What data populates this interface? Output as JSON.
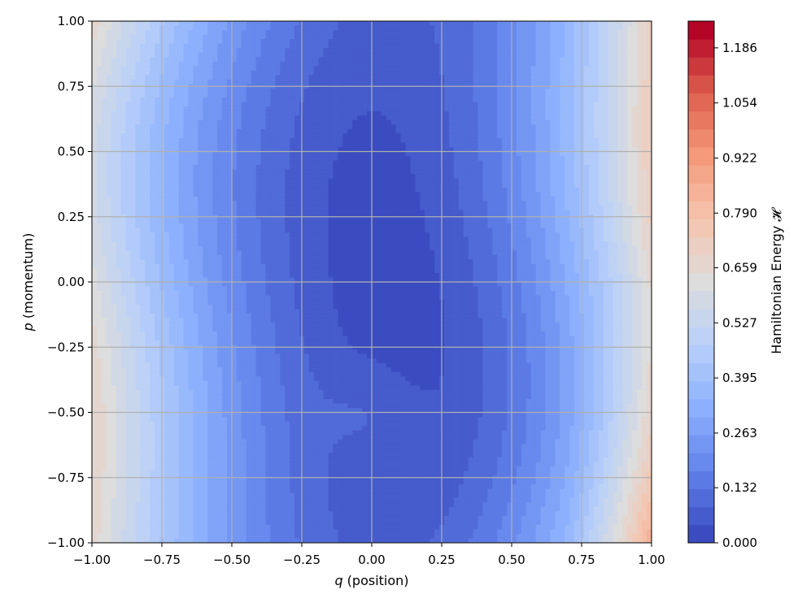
{
  "chart_data": {
    "type": "heatmap",
    "subtype": "filled-contour",
    "xlabel_symbol": "q",
    "xlabel_text": " (position)",
    "ylabel_symbol": "p",
    "ylabel_text": " (momentum)",
    "xlim": [
      -1.0,
      1.0
    ],
    "ylim": [
      -1.0,
      1.0
    ],
    "x_ticks": [
      -1.0,
      -0.75,
      -0.5,
      -0.25,
      0.0,
      0.25,
      0.5,
      0.75,
      1.0
    ],
    "x_tick_labels": [
      "−1.00",
      "−0.75",
      "−0.50",
      "−0.25",
      "0.00",
      "0.25",
      "0.50",
      "0.75",
      "1.00"
    ],
    "y_ticks": [
      -1.0,
      -0.75,
      -0.5,
      -0.25,
      0.0,
      0.25,
      0.5,
      0.75,
      1.0
    ],
    "y_tick_labels": [
      "−1.00",
      "−0.75",
      "−0.50",
      "−0.25",
      "0.00",
      "0.25",
      "0.50",
      "0.75",
      "1.00"
    ],
    "grid": true,
    "colormap": "coolwarm",
    "colorbar": {
      "label": "Hamiltonian Energy 𝓗",
      "min": 0.0,
      "max": 1.25,
      "levels": 29,
      "ticks": [
        0.0,
        0.132,
        0.263,
        0.395,
        0.527,
        0.659,
        0.79,
        0.922,
        1.054,
        1.186
      ],
      "tick_labels": [
        "0.000",
        "0.132",
        "0.263",
        "0.395",
        "0.527",
        "0.659",
        "0.790",
        "0.922",
        "1.054",
        "1.186"
      ]
    }
  }
}
